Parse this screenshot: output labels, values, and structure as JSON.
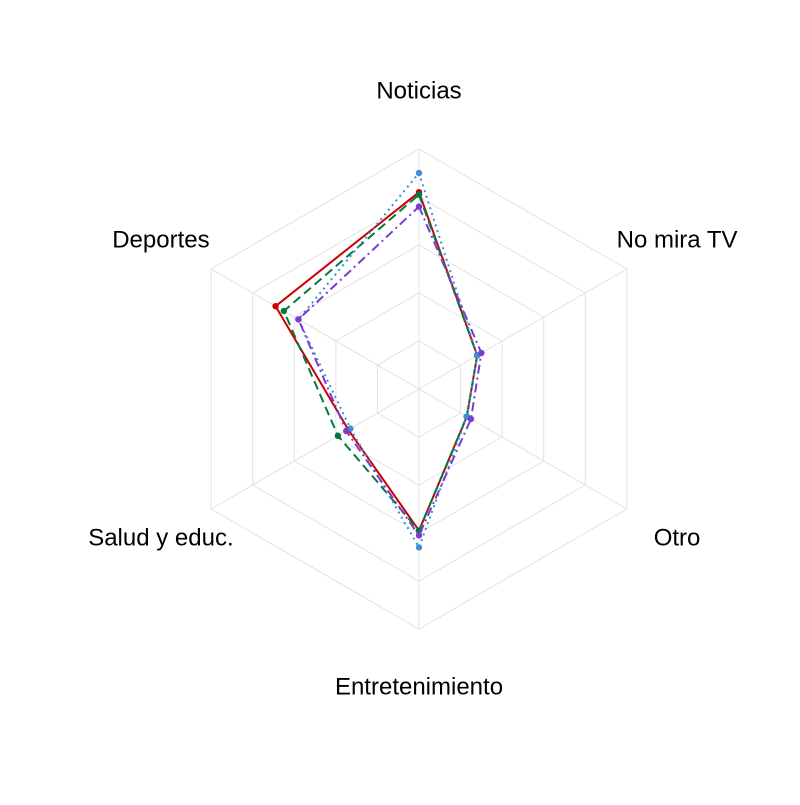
{
  "chart_data": {
    "type": "radar",
    "axes": [
      "Noticias",
      "No mira TV",
      "Otro",
      "Entretenimiento",
      "Salud y educ.",
      "Deportes"
    ],
    "range": [
      0,
      1
    ],
    "grid_levels": 5,
    "grid": true,
    "legend": "none",
    "series": [
      {
        "color": "#cc0000",
        "dash": "solid",
        "values": [
          0.82,
          0.28,
          0.23,
          0.59,
          0.34,
          0.69
        ]
      },
      {
        "color": "#007a3d",
        "dash": "dashed",
        "values": [
          0.81,
          0.28,
          0.23,
          0.59,
          0.39,
          0.65
        ]
      },
      {
        "color": "#3b8fd4",
        "dash": "dotted",
        "values": [
          0.9,
          0.28,
          0.23,
          0.66,
          0.33,
          0.58
        ]
      },
      {
        "color": "#7a3bd4",
        "dash": "dashdot",
        "values": [
          0.76,
          0.3,
          0.25,
          0.61,
          0.35,
          0.58
        ]
      }
    ]
  }
}
